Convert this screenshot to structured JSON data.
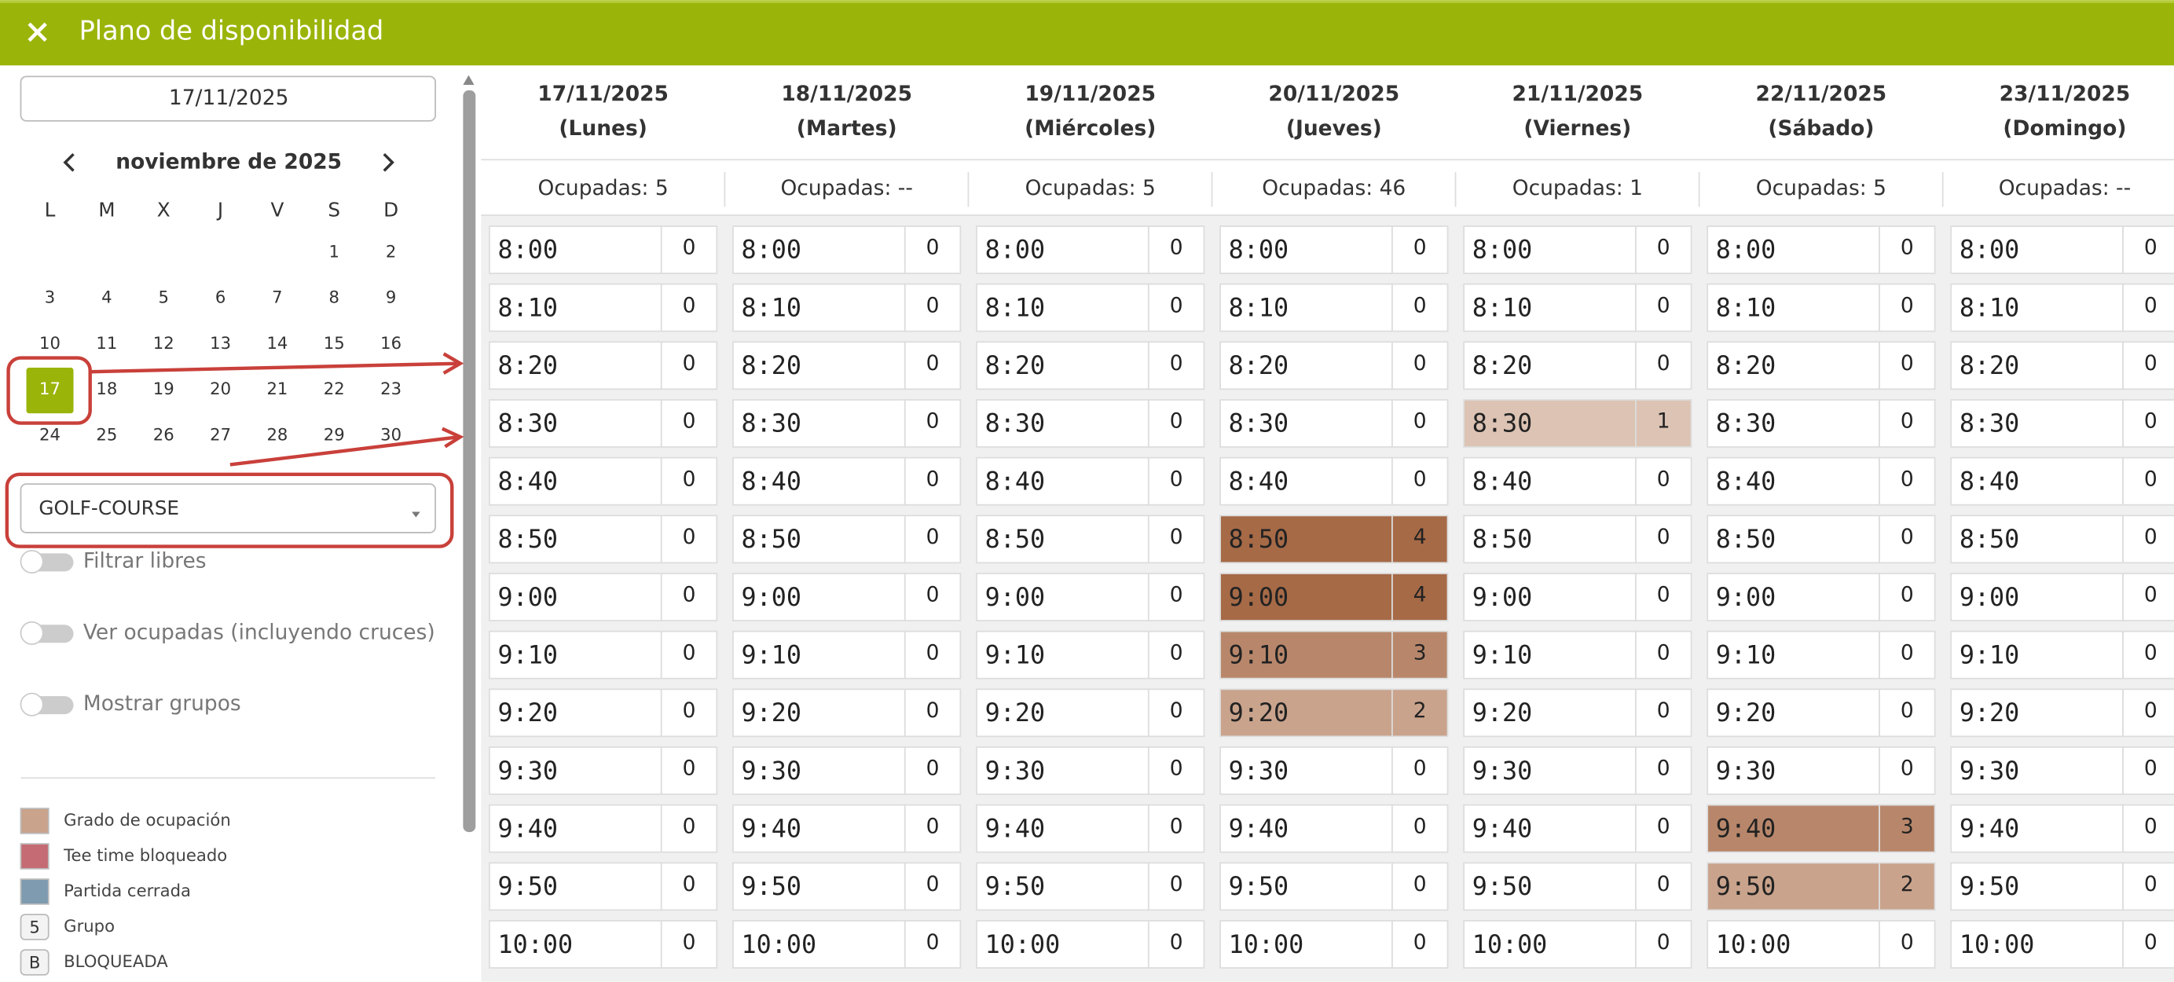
{
  "header": {
    "title": "Plano de disponibilidad"
  },
  "sidebar": {
    "date": "17/11/2025",
    "calendar": {
      "month": "noviembre de 2025",
      "weekdays": [
        "L",
        "M",
        "X",
        "J",
        "V",
        "S",
        "D"
      ],
      "weeks": [
        [
          null,
          null,
          null,
          null,
          null,
          1,
          2
        ],
        [
          3,
          4,
          5,
          6,
          7,
          8,
          9
        ],
        [
          10,
          11,
          12,
          13,
          14,
          15,
          16
        ],
        [
          17,
          18,
          19,
          20,
          21,
          22,
          23
        ],
        [
          24,
          25,
          26,
          27,
          28,
          29,
          30
        ]
      ],
      "selected": 17,
      "selected_color": "#9bb40a"
    },
    "course": "GOLF-COURSE",
    "toggles": [
      "Filtrar libres",
      "Ver ocupadas (incluyendo cruces)",
      "Mostrar grupos"
    ],
    "legend": [
      {
        "label": "Grado de ocupación",
        "color": "#c9a38c"
      },
      {
        "label": "Tee time bloqueado",
        "color": "#c56b74"
      },
      {
        "label": "Partida cerrada",
        "color": "#7e9bb0"
      },
      {
        "badge": "5",
        "label": "Grupo"
      },
      {
        "badge": "B",
        "label": "BLOQUEADA"
      }
    ]
  },
  "grid": {
    "times": [
      "8:00",
      "8:10",
      "8:20",
      "8:30",
      "8:40",
      "8:50",
      "9:00",
      "9:10",
      "9:20",
      "9:30",
      "9:40",
      "9:50",
      "10:00"
    ],
    "occupancy_colors": {
      "1": "#dcc3b3",
      "2": "#c9a38c",
      "3": "#b8876b",
      "4": "#a66a47"
    },
    "days": [
      {
        "date": "17/11/2025",
        "weekday": "(Lunes)",
        "occupied": "Ocupadas: 5",
        "counts": [
          0,
          0,
          0,
          0,
          0,
          0,
          0,
          0,
          0,
          0,
          0,
          0,
          0
        ]
      },
      {
        "date": "18/11/2025",
        "weekday": "(Martes)",
        "occupied": "Ocupadas: --",
        "counts": [
          0,
          0,
          0,
          0,
          0,
          0,
          0,
          0,
          0,
          0,
          0,
          0,
          0
        ]
      },
      {
        "date": "19/11/2025",
        "weekday": "(Miércoles)",
        "occupied": "Ocupadas: 5",
        "counts": [
          0,
          0,
          0,
          0,
          0,
          0,
          0,
          0,
          0,
          0,
          0,
          0,
          0
        ]
      },
      {
        "date": "20/11/2025",
        "weekday": "(Jueves)",
        "occupied": "Ocupadas: 46",
        "counts": [
          0,
          0,
          0,
          0,
          0,
          4,
          4,
          3,
          2,
          0,
          0,
          0,
          0
        ]
      },
      {
        "date": "21/11/2025",
        "weekday": "(Viernes)",
        "occupied": "Ocupadas: 1",
        "counts": [
          0,
          0,
          0,
          1,
          0,
          0,
          0,
          0,
          0,
          0,
          0,
          0,
          0
        ]
      },
      {
        "date": "22/11/2025",
        "weekday": "(Sábado)",
        "occupied": "Ocupadas: 5",
        "counts": [
          0,
          0,
          0,
          0,
          0,
          0,
          0,
          0,
          0,
          0,
          3,
          2,
          0
        ]
      },
      {
        "date": "23/11/2025",
        "weekday": "(Domingo)",
        "occupied": "Ocupadas: --",
        "counts": [
          0,
          0,
          0,
          0,
          0,
          0,
          0,
          0,
          0,
          0,
          0,
          0,
          0
        ]
      }
    ]
  }
}
